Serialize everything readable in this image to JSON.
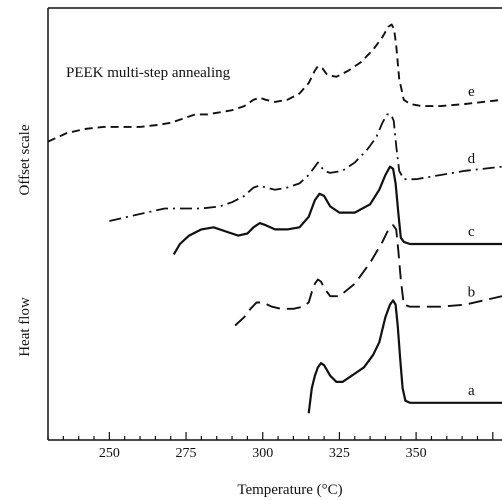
{
  "chart_data": {
    "type": "line",
    "annotation": "PEEK multi-step annealing",
    "xlabel": "Temperature (°C)",
    "ylabel_top": "Offset scale",
    "ylabel_bottom": "Heat flow",
    "x_ticks": [
      "250",
      "275",
      "300",
      "325",
      "350"
    ],
    "xlim": [
      230,
      378
    ],
    "ylim": [
      0,
      100
    ],
    "grid": false,
    "series": [
      {
        "name": "a",
        "style": "solid",
        "x": [
          315,
          316,
          317,
          318,
          319,
          320,
          322,
          324,
          326,
          328,
          330,
          333,
          336,
          338,
          340,
          341.5,
          342.5,
          343.3,
          344,
          344.8,
          345.6,
          346.5,
          348,
          352,
          358,
          365,
          372,
          378
        ],
        "y": [
          4,
          10,
          13,
          15,
          16,
          15.5,
          13,
          11.5,
          11.5,
          12.5,
          13.5,
          15,
          18,
          21,
          27,
          30,
          31,
          30,
          25,
          17,
          10,
          7,
          6.5,
          6.5,
          6.5,
          6.5,
          6.5,
          6.5
        ]
      },
      {
        "name": "b",
        "style": "long-dash",
        "x": [
          291,
          294,
          296,
          298,
          300,
          303,
          306,
          310,
          313,
          315,
          316,
          317,
          318,
          319,
          320,
          322,
          325,
          330,
          335,
          339,
          341,
          342.5,
          343.5,
          344.2,
          345,
          346,
          348,
          352,
          358,
          366,
          372,
          378
        ],
        "y": [
          25,
          27,
          29,
          30.5,
          30.5,
          29.5,
          29,
          29,
          29.5,
          30.5,
          33,
          35,
          36,
          35.5,
          34,
          32,
          32,
          35,
          40,
          45,
          48,
          49,
          48,
          43,
          36,
          30,
          29.5,
          29.5,
          29.5,
          30,
          31,
          32
        ]
      },
      {
        "name": "c",
        "style": "solid",
        "x": [
          271,
          273,
          276,
          280,
          284,
          288,
          292,
          295,
          297,
          299,
          301,
          304,
          308,
          312,
          315,
          317,
          318.5,
          320,
          322,
          325,
          330,
          335,
          338,
          340,
          341.5,
          342.5,
          343.3,
          344.2,
          345,
          346,
          348,
          355,
          365,
          378
        ],
        "y": [
          42,
          44.5,
          46.5,
          48,
          48.5,
          47.5,
          46.5,
          47,
          48.5,
          49.5,
          49,
          48,
          48,
          48.5,
          51,
          55,
          56.5,
          56,
          53.5,
          52,
          52,
          54,
          57.5,
          61,
          63,
          62.5,
          59,
          52,
          46,
          45,
          44.5,
          44.5,
          44.5,
          44.5
        ]
      },
      {
        "name": "d",
        "style": "dash-dot",
        "x": [
          250,
          256,
          262,
          268,
          274,
          280,
          286,
          290,
          294,
          297,
          299,
          301,
          304,
          308,
          312,
          315,
          317,
          318,
          319,
          320,
          322,
          326,
          330,
          334,
          337,
          339,
          340.5,
          341.8,
          342.7,
          343.5,
          344.5,
          346,
          350,
          358,
          366,
          378
        ],
        "y": [
          50,
          51,
          52,
          53,
          53,
          53,
          53.5,
          54.5,
          56,
          58,
          58.5,
          58,
          57.5,
          58,
          59,
          61,
          63,
          64,
          63,
          62,
          61.5,
          62,
          64,
          67,
          70,
          73.5,
          75.5,
          75.5,
          74,
          68,
          62,
          60,
          60,
          61,
          62,
          63
        ]
      },
      {
        "name": "e",
        "style": "short-dash",
        "x": [
          230,
          236,
          242,
          248,
          254,
          260,
          266,
          270,
          274,
          278,
          282,
          286,
          290,
          294,
          297,
          299,
          301,
          304,
          308,
          312,
          315,
          317,
          318,
          319.5,
          321,
          324,
          328,
          332,
          336,
          339,
          341,
          342,
          342.8,
          343.5,
          344.5,
          346,
          348,
          352,
          358,
          366,
          378
        ],
        "y": [
          69,
          71,
          72,
          72.5,
          72.5,
          72.5,
          73,
          73.5,
          74.5,
          75.5,
          75.5,
          76,
          76.5,
          77.5,
          79,
          79.5,
          79,
          78.5,
          79,
          80.5,
          83,
          86,
          87,
          86.5,
          85,
          84.5,
          86,
          88,
          91,
          94,
          96.5,
          97,
          96,
          92,
          84,
          79,
          78,
          77.5,
          77.5,
          78,
          79
        ]
      }
    ]
  }
}
